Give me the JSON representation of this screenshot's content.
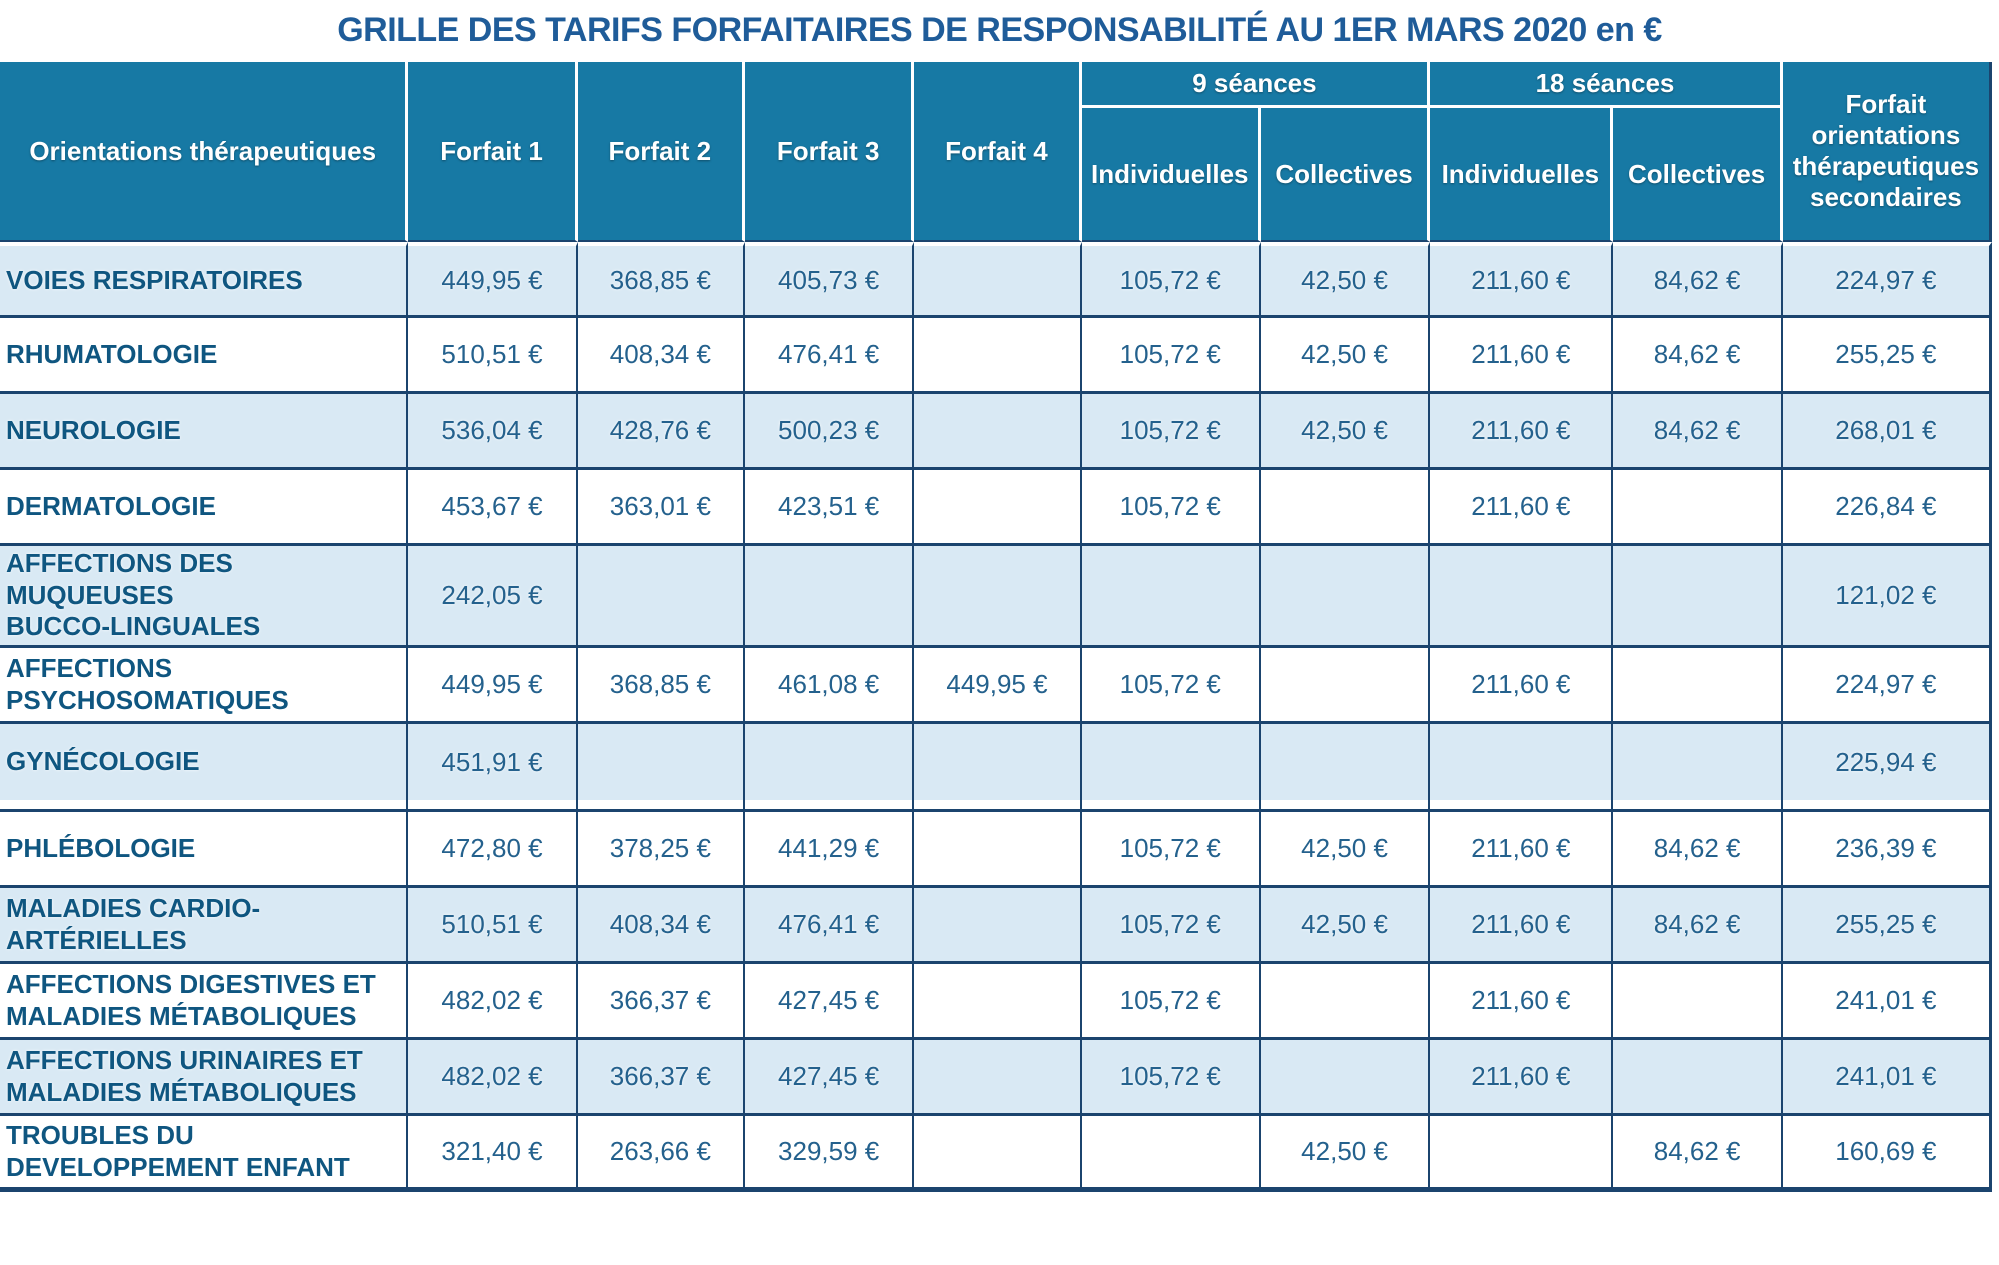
{
  "title": "GRILLE DES TARIFS FORFAITAIRES DE RESPONSABILITÉ AU 1ER MARS 2020 en €",
  "colors": {
    "header_bg": "#1779A4",
    "row_alt_bg": "#D9E9F4",
    "row_white_bg": "#FFFFFF",
    "border": "#1B446E",
    "title_text": "#1F5C99",
    "label_text": "#0F5680",
    "value_text": "#24618D"
  },
  "table": {
    "col_headers": {
      "orientation": "Orientations thérapeutiques",
      "forfait1": "Forfait 1",
      "forfait2": "Forfait 2",
      "forfait3": "Forfait 3",
      "forfait4": "Forfait 4",
      "seances9": "9 séances",
      "seances18": "18 séances",
      "individuelles9": "Individuelles",
      "collectives9": "Collectives",
      "individuelles18": "Individuelles",
      "collectives18": "Collectives",
      "forfait_secondaires": "Forfait orientations thérapeutiques secondaires"
    },
    "value_columns": [
      "forfait1",
      "forfait2",
      "forfait3",
      "forfait4",
      "individuelles9",
      "collectives9",
      "individuelles18",
      "collectives18",
      "forfait_secondaires"
    ],
    "rows": [
      {
        "label": "VOIES RESPIRATOIRES",
        "shaded": true,
        "gap_after": false,
        "values": [
          "449,95 €",
          "368,85 €",
          "405,73 €",
          "",
          "105,72 €",
          "42,50 €",
          "211,60 €",
          "84,62 €",
          "224,97 €"
        ]
      },
      {
        "label": "RHUMATOLOGIE",
        "shaded": false,
        "gap_after": false,
        "values": [
          "510,51 €",
          "408,34 €",
          "476,41 €",
          "",
          "105,72 €",
          "42,50 €",
          "211,60 €",
          "84,62 €",
          "255,25 €"
        ]
      },
      {
        "label": "NEUROLOGIE",
        "shaded": true,
        "gap_after": false,
        "values": [
          "536,04 €",
          "428,76 €",
          "500,23 €",
          "",
          "105,72 €",
          "42,50 €",
          "211,60 €",
          "84,62 €",
          "268,01 €"
        ]
      },
      {
        "label": "DERMATOLOGIE",
        "shaded": false,
        "gap_after": false,
        "values": [
          "453,67 €",
          "363,01 €",
          "423,51 €",
          "",
          "105,72 €",
          "",
          "211,60 €",
          "",
          "226,84 €"
        ]
      },
      {
        "label": "AFFECTIONS DES MUQUEUSES\nBUCCO-LINGUALES",
        "shaded": true,
        "gap_after": false,
        "values": [
          "242,05 €",
          "",
          "",
          "",
          "",
          "",
          "",
          "",
          "121,02 €"
        ]
      },
      {
        "label": "AFFECTIONS\nPSYCHOSOMATIQUES",
        "shaded": false,
        "gap_after": false,
        "values": [
          "449,95 €",
          "368,85 €",
          "461,08 €",
          "449,95 €",
          "105,72 €",
          "",
          "211,60 €",
          "",
          "224,97 €"
        ]
      },
      {
        "label": "GYNÉCOLOGIE",
        "shaded": true,
        "gap_after": true,
        "values": [
          "451,91 €",
          "",
          "",
          "",
          "",
          "",
          "",
          "",
          "225,94 €"
        ]
      },
      {
        "label": "PHLÉBOLOGIE",
        "shaded": false,
        "gap_after": false,
        "values": [
          "472,80 €",
          "378,25 €",
          "441,29 €",
          "",
          "105,72 €",
          "42,50 €",
          "211,60 €",
          "84,62 €",
          "236,39 €"
        ]
      },
      {
        "label": "MALADIES CARDIO-\nARTÉRIELLES",
        "shaded": true,
        "gap_after": false,
        "values": [
          "510,51 €",
          "408,34 €",
          "476,41 €",
          "",
          "105,72 €",
          "42,50 €",
          "211,60 €",
          "84,62 €",
          "255,25 €"
        ]
      },
      {
        "label": "AFFECTIONS DIGESTIVES ET\nMALADIES MÉTABOLIQUES",
        "shaded": false,
        "gap_after": false,
        "values": [
          "482,02 €",
          "366,37 €",
          "427,45 €",
          "",
          "105,72 €",
          "",
          "211,60 €",
          "",
          "241,01 €"
        ]
      },
      {
        "label": "AFFECTIONS URINAIRES ET\nMALADIES MÉTABOLIQUES",
        "shaded": true,
        "gap_after": false,
        "values": [
          "482,02 €",
          "366,37 €",
          "427,45 €",
          "",
          "105,72 €",
          "",
          "211,60 €",
          "",
          "241,01 €"
        ]
      },
      {
        "label": "TROUBLES DU\nDEVELOPPEMENT ENFANT",
        "shaded": false,
        "gap_after": false,
        "values": [
          "321,40 €",
          "263,66 €",
          "329,59 €",
          "",
          "",
          "42,50 €",
          "",
          "84,62 €",
          "160,69 €"
        ]
      }
    ]
  }
}
